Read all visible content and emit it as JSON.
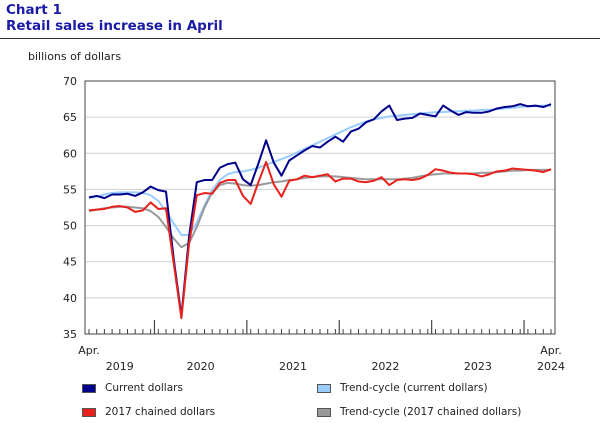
{
  "header": {
    "chart_number": "Chart 1",
    "title": "Retail sales increase in April"
  },
  "chart_data": {
    "type": "line",
    "title": "Retail sales increase in April",
    "ylabel": "billions of dollars",
    "xlabel": "",
    "ylim": [
      35,
      70
    ],
    "yticks": [
      35,
      40,
      45,
      50,
      55,
      60,
      65,
      70
    ],
    "x_period": "monthly, April 2019 to April 2024",
    "x_tick_labels": [
      {
        "label": "Apr.",
        "month_index": 0,
        "row": 1
      },
      {
        "label": "2019",
        "month_index": 4,
        "row": 2
      },
      {
        "label": "2020",
        "month_index": 14.5,
        "row": 2
      },
      {
        "label": "2021",
        "month_index": 26.5,
        "row": 2
      },
      {
        "label": "2022",
        "month_index": 38.5,
        "row": 2
      },
      {
        "label": "2023",
        "month_index": 50.5,
        "row": 2
      },
      {
        "label": "Apr.",
        "month_index": 60,
        "row": 1
      },
      {
        "label": "2024",
        "month_index": 60,
        "row": 2
      }
    ],
    "year_boundaries": [
      8.5,
      20.5,
      32.5,
      44.5,
      56.5
    ],
    "series": [
      {
        "name": "Current dollars",
        "color": "#00008b",
        "values": [
          53.9,
          54.1,
          53.8,
          54.3,
          54.3,
          54.4,
          54.1,
          54.6,
          55.4,
          54.9,
          54.7,
          45.4,
          37.5,
          48.5,
          56.0,
          56.3,
          56.3,
          58.0,
          58.5,
          58.7,
          56.4,
          55.6,
          58.6,
          61.8,
          58.7,
          56.9,
          59.0,
          59.7,
          60.4,
          61.0,
          60.8,
          61.6,
          62.3,
          61.6,
          63.0,
          63.4,
          64.3,
          64.7,
          65.8,
          66.6,
          64.6,
          64.8,
          64.9,
          65.5,
          65.3,
          65.1,
          66.6,
          65.9,
          65.3,
          65.7,
          65.6,
          65.6,
          65.8,
          66.2,
          66.4,
          66.5,
          66.8,
          66.5,
          66.6,
          66.4,
          66.8
        ]
      },
      {
        "name": "Trend-cycle (current dollars)",
        "color": "#99ccff",
        "values": [
          53.8,
          54.0,
          54.3,
          54.5,
          54.6,
          54.6,
          54.6,
          54.5,
          54.2,
          53.4,
          52.0,
          50.3,
          48.7,
          48.7,
          50.4,
          52.8,
          54.9,
          56.3,
          57.1,
          57.4,
          57.5,
          57.7,
          58.0,
          58.4,
          58.8,
          59.2,
          59.6,
          60.1,
          60.6,
          61.1,
          61.6,
          62.1,
          62.6,
          63.1,
          63.6,
          64.0,
          64.4,
          64.7,
          64.9,
          65.1,
          65.2,
          65.3,
          65.4,
          65.5,
          65.6,
          65.7,
          65.7,
          65.8,
          65.8,
          65.9,
          65.9,
          66.0,
          66.0,
          66.1,
          66.2,
          66.3,
          66.4,
          66.5,
          66.5,
          66.6,
          66.6
        ]
      },
      {
        "name": "2017 chained dollars",
        "color": "#e8211c",
        "values": [
          52.1,
          52.2,
          52.3,
          52.6,
          52.7,
          52.5,
          51.9,
          52.1,
          53.2,
          52.3,
          52.4,
          44.8,
          37.2,
          47.5,
          54.2,
          54.5,
          54.4,
          55.9,
          56.3,
          56.3,
          54.1,
          53.0,
          56.0,
          58.8,
          55.7,
          54.0,
          56.2,
          56.4,
          56.9,
          56.7,
          56.9,
          57.1,
          56.1,
          56.5,
          56.5,
          56.1,
          56.0,
          56.2,
          56.7,
          55.6,
          56.3,
          56.4,
          56.3,
          56.5,
          57.0,
          57.8,
          57.6,
          57.3,
          57.2,
          57.2,
          57.1,
          56.8,
          57.1,
          57.5,
          57.6,
          57.9,
          57.8,
          57.7,
          57.6,
          57.4,
          57.8
        ]
      },
      {
        "name": "Trend-cycle (2017 chained dollars)",
        "color": "#999999",
        "values": [
          52.0,
          52.2,
          52.4,
          52.5,
          52.6,
          52.6,
          52.5,
          52.4,
          52.0,
          51.2,
          49.8,
          48.2,
          47.0,
          47.6,
          49.8,
          52.5,
          54.6,
          55.6,
          55.9,
          55.8,
          55.6,
          55.5,
          55.6,
          55.8,
          56.0,
          56.1,
          56.3,
          56.4,
          56.6,
          56.7,
          56.8,
          56.8,
          56.8,
          56.7,
          56.6,
          56.5,
          56.4,
          56.4,
          56.4,
          56.4,
          56.4,
          56.5,
          56.6,
          56.8,
          57.0,
          57.1,
          57.2,
          57.2,
          57.2,
          57.2,
          57.2,
          57.3,
          57.3,
          57.4,
          57.5,
          57.6,
          57.6,
          57.7,
          57.7,
          57.7,
          57.7
        ]
      }
    ],
    "legend": [
      {
        "label": "Current dollars",
        "color": "#00008b"
      },
      {
        "label": "Trend-cycle (current dollars)",
        "color": "#99ccff"
      },
      {
        "label": "2017 chained dollars",
        "color": "#e8211c"
      },
      {
        "label": "Trend-cycle (2017 chained dollars)",
        "color": "#999999"
      }
    ]
  }
}
